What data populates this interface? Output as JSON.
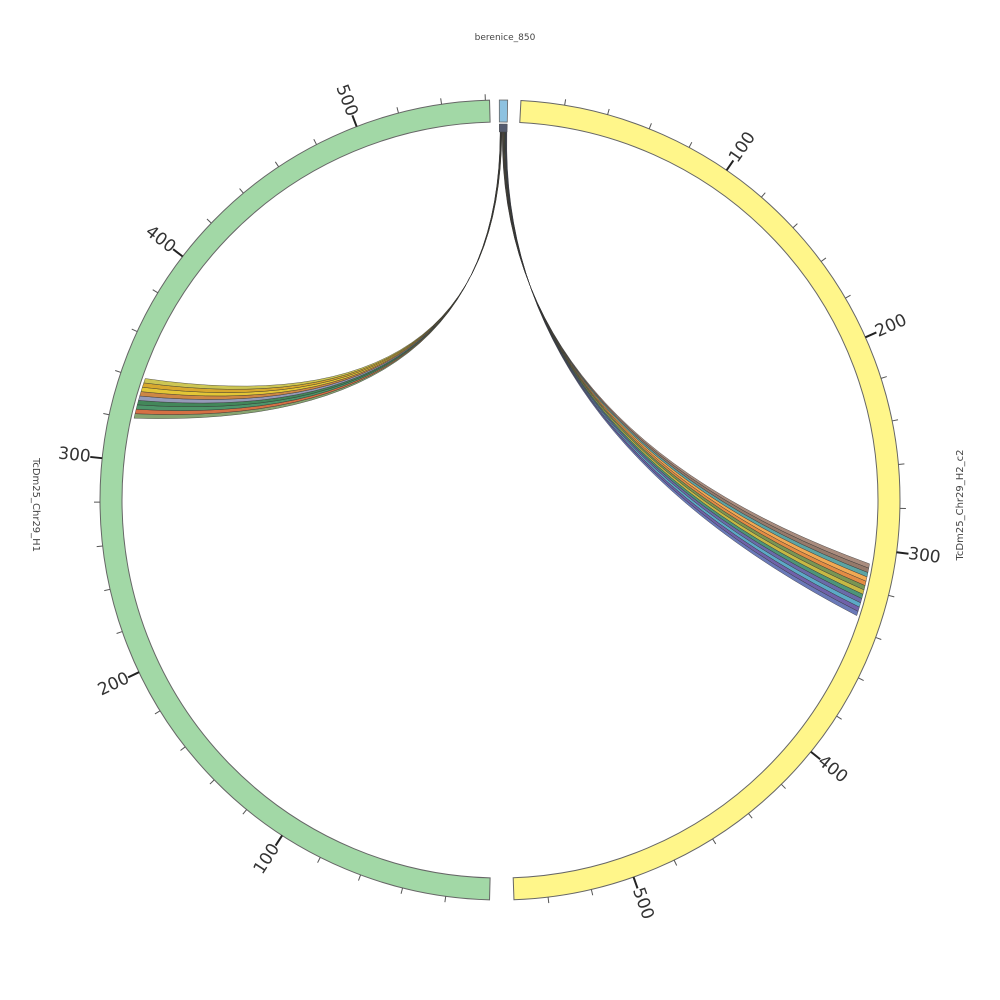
{
  "title": "berenice_850",
  "segments": [
    {
      "name": "TcDm25_Chr29_H2_c2",
      "ticks": [
        100,
        200,
        300,
        400,
        500
      ]
    },
    {
      "name": "TcDm25_Chr29_H1",
      "ticks": [
        100,
        200,
        300,
        400,
        500
      ]
    }
  ]
}
